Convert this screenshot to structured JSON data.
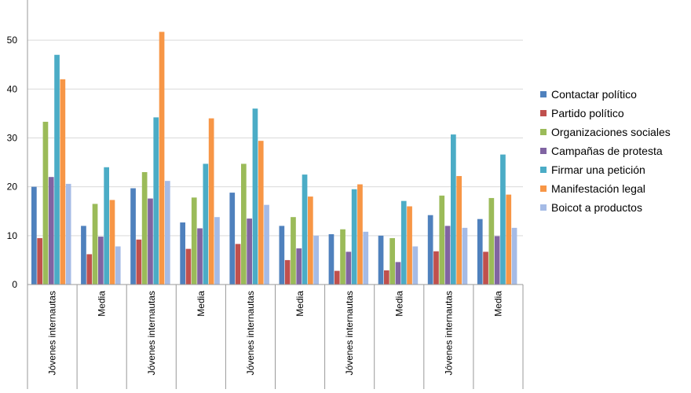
{
  "chart_data": {
    "type": "bar",
    "title": "",
    "xlabel": "",
    "ylabel": "",
    "ylim": [
      0,
      55
    ],
    "yticks": [
      0,
      10,
      20,
      30,
      40,
      50
    ],
    "grid": "horizontal",
    "legend_position": "right",
    "categories": [
      "Jóvenes internautas",
      "Media",
      "Jóvenes internautas",
      "Media",
      "Jóvenes internautas",
      "Media",
      "Jóvenes internautas",
      "Media",
      "Jóvenes internautas",
      "Media"
    ],
    "series": [
      {
        "name": "Contactar político",
        "color": "#4f81bd",
        "values": [
          20,
          12,
          19.7,
          12.7,
          18.8,
          12,
          10.3,
          10,
          14.2,
          13.4
        ]
      },
      {
        "name": "Partido político",
        "color": "#c0504d",
        "values": [
          9.5,
          6.2,
          9.2,
          7.3,
          8.3,
          5,
          2.8,
          2.9,
          6.8,
          6.7
        ]
      },
      {
        "name": "Organizaciones sociales",
        "color": "#9bbb59",
        "values": [
          33.3,
          16.5,
          23,
          17.8,
          24.7,
          13.8,
          11.3,
          9.5,
          18.2,
          17.7
        ]
      },
      {
        "name": "Campañas de protesta",
        "color": "#8064a2",
        "values": [
          22,
          9.8,
          17.6,
          11.5,
          13.5,
          7.4,
          6.7,
          4.6,
          12,
          9.9
        ]
      },
      {
        "name": "Firmar una petición",
        "color": "#4bacc6",
        "values": [
          47,
          24,
          34.2,
          24.7,
          36,
          22.5,
          19.5,
          17.1,
          30.7,
          26.6
        ]
      },
      {
        "name": "Manifestación legal",
        "color": "#f79646",
        "values": [
          42,
          17.3,
          51.7,
          34,
          29.4,
          18,
          20.5,
          16,
          22.2,
          18.4
        ]
      },
      {
        "name": "Boicot a productos",
        "color": "#a5bbe6",
        "values": [
          20.6,
          7.8,
          21.2,
          13.8,
          16.3,
          10,
          10.8,
          7.8,
          11.6,
          11.6
        ]
      }
    ]
  }
}
